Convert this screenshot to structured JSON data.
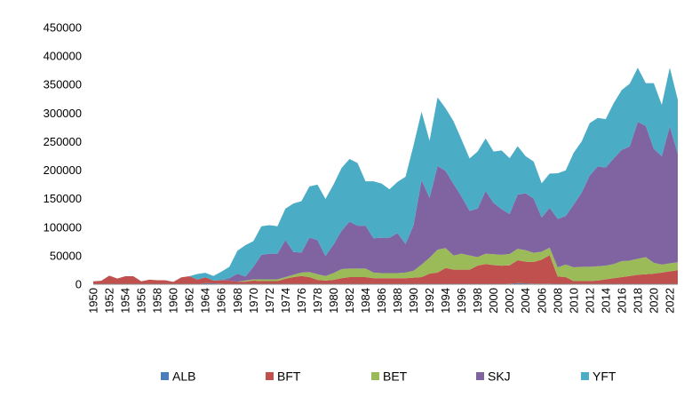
{
  "chart_data": {
    "type": "area",
    "stacked": true,
    "x": [
      1950,
      1951,
      1952,
      1953,
      1954,
      1955,
      1956,
      1957,
      1958,
      1959,
      1960,
      1961,
      1962,
      1963,
      1964,
      1965,
      1966,
      1967,
      1968,
      1969,
      1970,
      1971,
      1972,
      1973,
      1974,
      1975,
      1976,
      1977,
      1978,
      1979,
      1980,
      1981,
      1982,
      1983,
      1984,
      1985,
      1986,
      1987,
      1988,
      1989,
      1990,
      1991,
      1992,
      1993,
      1994,
      1995,
      1996,
      1997,
      1998,
      1999,
      2000,
      2001,
      2002,
      2003,
      2004,
      2005,
      2006,
      2007,
      2008,
      2009,
      2010,
      2011,
      2012,
      2013,
      2014,
      2015,
      2016,
      2017,
      2018,
      2019,
      2020,
      2021,
      2022,
      2023
    ],
    "x_tick_labels": [
      "1950",
      "1952",
      "1954",
      "1956",
      "1958",
      "1960",
      "1962",
      "1964",
      "1966",
      "1968",
      "1970",
      "1972",
      "1974",
      "1976",
      "1978",
      "1980",
      "1982",
      "1984",
      "1986",
      "1988",
      "1990",
      "1992",
      "1994",
      "1996",
      "1998",
      "2000",
      "2002",
      "2004",
      "2006",
      "2008",
      "2010",
      "2012",
      "2014",
      "2016",
      "2018",
      "2020",
      "2022"
    ],
    "y_tick_labels": [
      "0",
      "50000",
      "100000",
      "150000",
      "200000",
      "250000",
      "300000",
      "350000",
      "400000",
      "450000"
    ],
    "ylim": [
      0,
      450000
    ],
    "grid": false,
    "legend_position": "bottom",
    "series": [
      {
        "name": "ALB",
        "color": "#4a7ebb",
        "values": [
          0,
          0,
          0,
          0,
          0,
          0,
          0,
          0,
          0,
          0,
          0,
          0,
          0,
          0,
          2000,
          1500,
          1000,
          500,
          500,
          500,
          500,
          500,
          500,
          500,
          500,
          500,
          500,
          500,
          500,
          500,
          500,
          500,
          500,
          500,
          500,
          500,
          500,
          500,
          500,
          500,
          500,
          500,
          500,
          500,
          500,
          500,
          500,
          500,
          500,
          500,
          500,
          500,
          1000,
          2000,
          1500,
          1000,
          1000,
          1000,
          500,
          500,
          500,
          500,
          500,
          500,
          500,
          500,
          500,
          500,
          500,
          500,
          500,
          500,
          500,
          500
        ]
      },
      {
        "name": "BFT",
        "color": "#c0504d",
        "values": [
          5000,
          6000,
          15000,
          10000,
          14000,
          14000,
          5000,
          8000,
          7000,
          7000,
          4000,
          12000,
          14000,
          8000,
          10000,
          5000,
          6000,
          6000,
          4000,
          4000,
          6000,
          5000,
          5000,
          5000,
          9000,
          12000,
          14000,
          12000,
          7000,
          6000,
          7000,
          10000,
          12000,
          12000,
          12000,
          10000,
          10000,
          10000,
          10000,
          10000,
          11000,
          12000,
          18000,
          20000,
          28000,
          25000,
          25000,
          25000,
          32000,
          35000,
          33000,
          32000,
          32000,
          40000,
          38000,
          38000,
          42000,
          50000,
          13000,
          12000,
          5000,
          5000,
          5000,
          6000,
          8000,
          10000,
          12000,
          14000,
          16000,
          17000,
          18000,
          20000,
          22000,
          24000
        ]
      },
      {
        "name": "BET",
        "color": "#9bbb59",
        "values": [
          0,
          0,
          0,
          0,
          0,
          0,
          0,
          0,
          0,
          0,
          0,
          0,
          0,
          0,
          0,
          0,
          0,
          0,
          0,
          2000,
          2000,
          3000,
          3000,
          3000,
          3000,
          4000,
          6000,
          9000,
          10000,
          8000,
          12000,
          16000,
          15000,
          15000,
          15000,
          10000,
          9000,
          9000,
          9000,
          10000,
          12000,
          22000,
          28000,
          40000,
          35000,
          25000,
          28000,
          25000,
          15000,
          18000,
          19000,
          19000,
          20000,
          20000,
          20000,
          16000,
          14000,
          13000,
          16000,
          22000,
          24000,
          25000,
          25000,
          25000,
          24000,
          25000,
          28000,
          27000,
          28000,
          30000,
          19000,
          14000,
          14000,
          14000
        ]
      },
      {
        "name": "SKJ",
        "color": "#8064a2",
        "values": [
          0,
          0,
          0,
          0,
          0,
          0,
          0,
          0,
          0,
          0,
          0,
          0,
          0,
          0,
          0,
          0,
          0,
          4000,
          14000,
          7000,
          22000,
          43000,
          45000,
          45000,
          65000,
          40000,
          35000,
          60000,
          60000,
          35000,
          50000,
          67000,
          82000,
          75000,
          75000,
          60000,
          62000,
          62000,
          70000,
          50000,
          80000,
          148000,
          105000,
          147000,
          135000,
          125000,
          100000,
          78000,
          85000,
          110000,
          90000,
          80000,
          70000,
          95000,
          100000,
          95000,
          60000,
          70000,
          85000,
          85000,
          110000,
          130000,
          160000,
          175000,
          172000,
          185000,
          195000,
          200000,
          240000,
          230000,
          200000,
          190000,
          240000,
          190000
        ]
      },
      {
        "name": "YFT",
        "color": "#4bacc6",
        "values": [
          0,
          0,
          0,
          0,
          0,
          0,
          0,
          0,
          0,
          0,
          0,
          0,
          0,
          10000,
          8000,
          8000,
          15000,
          20000,
          40000,
          55000,
          45000,
          50000,
          50000,
          48000,
          55000,
          85000,
          90000,
          90000,
          97000,
          100000,
          105000,
          110000,
          110000,
          110000,
          78000,
          100000,
          95000,
          85000,
          90000,
          118000,
          140000,
          120000,
          100000,
          120000,
          110000,
          110000,
          100000,
          92000,
          100000,
          92000,
          90000,
          103000,
          98000,
          85000,
          65000,
          65000,
          60000,
          60000,
          80000,
          80000,
          91000,
          90000,
          92000,
          85000,
          85000,
          97000,
          105000,
          110000,
          95000,
          75000,
          115000,
          90000,
          103000,
          95000
        ]
      }
    ]
  }
}
